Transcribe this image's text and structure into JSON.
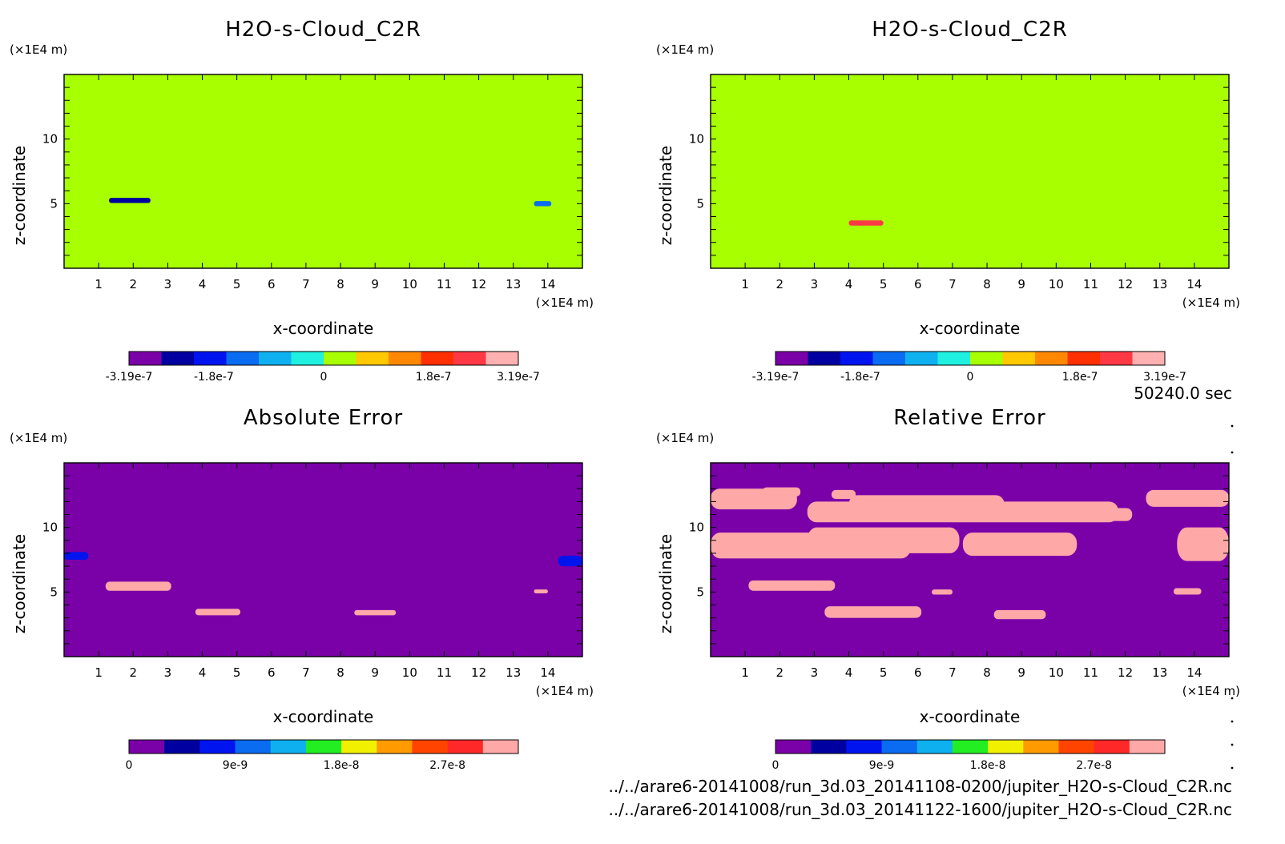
{
  "time_label": "50240.0 sec",
  "files": [
    "../../arare6-20141008/run_3d.03_20141108-0200/jupiter_H2O-s-Cloud_C2R.nc",
    "../../arare6-20141008/run_3d.03_20141122-1600/jupiter_H2O-s-Cloud_C2R.nc"
  ],
  "colors": {
    "cloud_scale": [
      "#7a00a8",
      "#0000a0",
      "#0014f0",
      "#0a6cf0",
      "#0fb0f0",
      "#1ff0e0",
      "#a8ff00",
      "#ffc800",
      "#ff8800",
      "#ff3000",
      "#ff3845",
      "#ffb0b0"
    ],
    "error_scale": [
      "#7a00a8",
      "#0000a0",
      "#0014f0",
      "#0a6cf0",
      "#0fb0f0",
      "#22ee22",
      "#f0f000",
      "#ff9a00",
      "#ff4400",
      "#ff2828",
      "#ffa8a8"
    ],
    "cloud_background": "#a8ff00",
    "cloud_patch": "#1ff0e0",
    "error_background": "#7a00a8",
    "error_patch": "#ffffff"
  },
  "chart_data": [
    {
      "type": "heatmap",
      "title": "H2O-s-Cloud_C2R",
      "xlabel": "x-coordinate",
      "ylabel": "z-coordinate",
      "x_unit": "(×1E4 m)",
      "y_unit": "(×1E4 m)",
      "xlim": [
        0,
        15
      ],
      "ylim": [
        0,
        15
      ],
      "x_ticks": [
        "1",
        "2",
        "3",
        "4",
        "5",
        "6",
        "7",
        "8",
        "9",
        "10",
        "11",
        "12",
        "13",
        "14"
      ],
      "y_ticks": [
        "5",
        "10"
      ],
      "colorbar": {
        "labels": [
          "-3.19e-7",
          "-1.8e-7",
          "0",
          "1.8e-7",
          "3.19e-7"
        ],
        "range": [
          -3.19e-07,
          3.19e-07
        ]
      },
      "background_value": 0,
      "features": [
        {
          "x": [
            0,
            1.0
          ],
          "z": [
            11.6,
            12.6
          ],
          "value": 3.5e-08
        },
        {
          "x": [
            1.0,
            2.2
          ],
          "z": [
            12.3,
            12.9
          ],
          "value": 3.5e-08
        },
        {
          "x": [
            2.9,
            7.6
          ],
          "z": [
            10.4,
            12.2
          ],
          "value": 3.5e-08
        },
        {
          "x": [
            2.0,
            5.6
          ],
          "z": [
            7.4,
            9.6
          ],
          "value": 3.5e-08
        },
        {
          "x": [
            0,
            0.6
          ],
          "z": [
            7.4,
            8.6
          ],
          "value": 3.5e-08
        },
        {
          "x": [
            7.4,
            8.6
          ],
          "z": [
            8.6,
            9.6
          ],
          "value": 3.5e-08
        },
        {
          "x": [
            11.0,
            15
          ],
          "z": [
            11.4,
            12.6
          ],
          "value": 3.5e-08
        },
        {
          "x": [
            13.3,
            15
          ],
          "z": [
            7.6,
            10.0
          ],
          "value": 3.5e-08
        },
        {
          "x": [
            1.1,
            3.3
          ],
          "z": [
            5.0,
            5.9
          ],
          "value": 3.5e-08
        },
        {
          "x": [
            1.3,
            2.5
          ],
          "z": [
            5.05,
            5.45
          ],
          "value": -2.2e-07
        },
        {
          "x": [
            13.6,
            14.1
          ],
          "z": [
            4.8,
            5.2
          ],
          "value": -1.2e-07
        }
      ]
    },
    {
      "type": "heatmap",
      "title": "H2O-s-Cloud_C2R",
      "xlabel": "x-coordinate",
      "ylabel": "z-coordinate",
      "x_unit": "(×1E4 m)",
      "y_unit": "(×1E4 m)",
      "xlim": [
        0,
        15
      ],
      "ylim": [
        0,
        15
      ],
      "x_ticks": [
        "1",
        "2",
        "3",
        "4",
        "5",
        "6",
        "7",
        "8",
        "9",
        "10",
        "11",
        "12",
        "13",
        "14"
      ],
      "y_ticks": [
        "5",
        "10"
      ],
      "colorbar": {
        "labels": [
          "-3.19e-7",
          "-1.8e-7",
          "0",
          "1.8e-7",
          "3.19e-7"
        ],
        "range": [
          -3.19e-07,
          3.19e-07
        ]
      },
      "background_value": 0,
      "features": [
        {
          "x": [
            0,
            2.5
          ],
          "z": [
            11.6,
            12.6
          ],
          "value": 3.5e-08
        },
        {
          "x": [
            4.0,
            5.0
          ],
          "z": [
            12.0,
            12.5
          ],
          "value": 3.5e-08
        },
        {
          "x": [
            5.2,
            12.8
          ],
          "z": [
            10.5,
            12.3
          ],
          "value": 3.5e-08
        },
        {
          "x": [
            3.5,
            6.0
          ],
          "z": [
            9.0,
            10.0
          ],
          "value": 3.5e-08
        },
        {
          "x": [
            0,
            2.0
          ],
          "z": [
            7.5,
            9.0
          ],
          "value": 3.5e-08
        },
        {
          "x": [
            1.5,
            3.0
          ],
          "z": [
            9.0,
            9.8
          ],
          "value": 3.5e-08
        },
        {
          "x": [
            8.3,
            10.3
          ],
          "z": [
            7.8,
            9.0
          ],
          "value": 3.5e-08
        },
        {
          "x": [
            5.5,
            6.9
          ],
          "z": [
            7.0,
            8.2
          ],
          "value": 3.5e-08
        },
        {
          "x": [
            12.3,
            15
          ],
          "z": [
            11.8,
            12.6
          ],
          "value": 3.5e-08
        },
        {
          "x": [
            13.5,
            15
          ],
          "z": [
            7.4,
            10.4
          ],
          "value": 3.5e-08
        },
        {
          "x": [
            6.3,
            7.0
          ],
          "z": [
            4.8,
            5.3
          ],
          "value": 3.5e-08
        },
        {
          "x": [
            3.3,
            6.1
          ],
          "z": [
            3.1,
            3.9
          ],
          "value": 3.5e-08
        },
        {
          "x": [
            8.2,
            9.7
          ],
          "z": [
            3.1,
            3.6
          ],
          "value": 3.5e-08
        },
        {
          "x": [
            4.0,
            5.0
          ],
          "z": [
            3.3,
            3.7
          ],
          "value": 2.5e-07
        }
      ]
    },
    {
      "type": "heatmap",
      "title": "Absolute Error",
      "xlabel": "x-coordinate",
      "ylabel": "z-coordinate",
      "x_unit": "(×1E4 m)",
      "y_unit": "(×1E4 m)",
      "xlim": [
        0,
        15
      ],
      "ylim": [
        0,
        15
      ],
      "x_ticks": [
        "1",
        "2",
        "3",
        "4",
        "5",
        "6",
        "7",
        "8",
        "9",
        "10",
        "11",
        "12",
        "13",
        "14"
      ],
      "y_ticks": [
        "5",
        "10"
      ],
      "colorbar": {
        "labels": [
          "0",
          "9e-9",
          "1.8e-8",
          "2.7e-8"
        ],
        "range": [
          0,
          3.3e-08
        ]
      },
      "background_value": 0,
      "features": [
        {
          "x": [
            1.2,
            3.1
          ],
          "z": [
            5.1,
            5.8
          ],
          "value": 3.3e-08
        },
        {
          "x": [
            3.8,
            5.1
          ],
          "z": [
            3.2,
            3.7
          ],
          "value": 3.3e-08
        },
        {
          "x": [
            8.4,
            9.6
          ],
          "z": [
            3.2,
            3.6
          ],
          "value": 3.3e-08
        },
        {
          "x": [
            0,
            0.7
          ],
          "z": [
            7.5,
            8.1
          ],
          "value": 8e-09
        },
        {
          "x": [
            14.3,
            15
          ],
          "z": [
            7.0,
            7.8
          ],
          "value": 8e-09
        },
        {
          "x": [
            13.6,
            14.0
          ],
          "z": [
            4.9,
            5.2
          ],
          "value": 3.3e-08
        }
      ]
    },
    {
      "type": "heatmap",
      "title": "Relative Error",
      "xlabel": "x-coordinate",
      "ylabel": "z-coordinate",
      "x_unit": "(×1E4 m)",
      "y_unit": "(×1E4 m)",
      "xlim": [
        0,
        15
      ],
      "ylim": [
        0,
        15
      ],
      "x_ticks": [
        "1",
        "2",
        "3",
        "4",
        "5",
        "6",
        "7",
        "8",
        "9",
        "10",
        "11",
        "12",
        "13",
        "14"
      ],
      "y_ticks": [
        "5",
        "10"
      ],
      "colorbar": {
        "labels": [
          "0",
          "9e-9",
          "1.8e-8",
          "2.7e-8"
        ],
        "range": [
          0,
          3.3e-08
        ]
      },
      "background_value": 0,
      "features": [
        {
          "x": [
            0,
            2.5
          ],
          "z": [
            11.4,
            13.0
          ],
          "value": 3.3e-08
        },
        {
          "x": [
            1.5,
            2.6
          ],
          "z": [
            12.4,
            13.1
          ],
          "value": 3.3e-08
        },
        {
          "x": [
            3.5,
            4.2
          ],
          "z": [
            12.2,
            12.9
          ],
          "value": 3.3e-08
        },
        {
          "x": [
            2.8,
            11.8
          ],
          "z": [
            10.4,
            12.0
          ],
          "value": 3.3e-08
        },
        {
          "x": [
            4.0,
            8.5
          ],
          "z": [
            11.0,
            12.5
          ],
          "value": 3.3e-08
        },
        {
          "x": [
            10.5,
            12.2
          ],
          "z": [
            10.5,
            11.5
          ],
          "value": 3.3e-08
        },
        {
          "x": [
            12.6,
            15
          ],
          "z": [
            11.6,
            12.9
          ],
          "value": 3.3e-08
        },
        {
          "x": [
            0,
            5.8
          ],
          "z": [
            7.6,
            9.6
          ],
          "value": 3.3e-08
        },
        {
          "x": [
            2.8,
            7.2
          ],
          "z": [
            8.0,
            10.0
          ],
          "value": 3.3e-08
        },
        {
          "x": [
            7.3,
            10.6
          ],
          "z": [
            7.8,
            9.6
          ],
          "value": 3.3e-08
        },
        {
          "x": [
            13.5,
            15
          ],
          "z": [
            7.4,
            10.0
          ],
          "value": 3.3e-08
        },
        {
          "x": [
            1.1,
            3.6
          ],
          "z": [
            5.1,
            5.9
          ],
          "value": 3.3e-08
        },
        {
          "x": [
            6.4,
            7.0
          ],
          "z": [
            4.8,
            5.2
          ],
          "value": 3.3e-08
        },
        {
          "x": [
            13.4,
            14.2
          ],
          "z": [
            4.8,
            5.3
          ],
          "value": 3.3e-08
        },
        {
          "x": [
            3.3,
            6.1
          ],
          "z": [
            3.0,
            3.9
          ],
          "value": 3.3e-08
        },
        {
          "x": [
            8.2,
            9.7
          ],
          "z": [
            2.9,
            3.6
          ],
          "value": 3.3e-08
        }
      ]
    }
  ]
}
